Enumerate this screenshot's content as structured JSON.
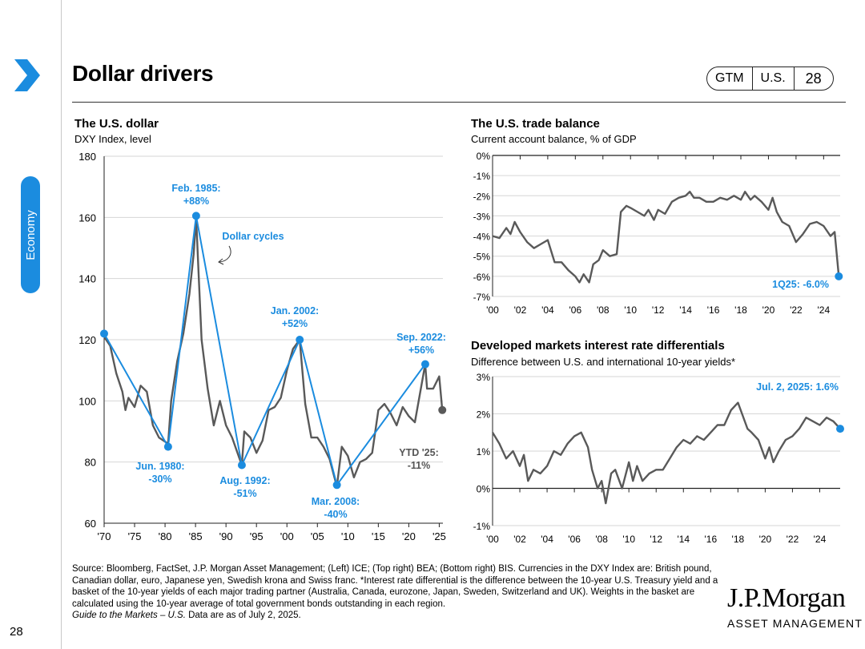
{
  "page": {
    "title": "Dollar drivers",
    "page_number": "28",
    "side_label": "Economy"
  },
  "header_tabs": [
    "GTM",
    "U.S.",
    "28"
  ],
  "colors": {
    "accent": "#1b8cdf",
    "line": "#595959",
    "grid": "#d6d6d6"
  },
  "source": {
    "text": "Source: Bloomberg, FactSet, J.P. Morgan Asset Management; (Left) ICE; (Top right) BEA; (Bottom right) BIS. Currencies in the DXY Index are: British pound, Canadian dollar, euro, Japanese yen, Swedish krona and Swiss franc. *Interest rate differential is the difference between the 10-year U.S. Treasury yield and a basket of the 10-year yields of each major trading partner (Australia, Canada, eurozone, Japan, Sweden, Switzerland and UK). Weights in the basket are calculated using the 10-year average of total government bonds outstanding in each region.",
    "guide": "Guide to the Markets – U.S.",
    "asof": " Data are as of July 2, 2025."
  },
  "logo": {
    "line1": "J.P.Morgan",
    "line2": "ASSET MANAGEMENT"
  },
  "chart_data": [
    {
      "id": "dxy",
      "type": "line",
      "title": "The U.S. dollar",
      "subtitle": "DXY Index, level",
      "xlim": [
        1970,
        2025.6
      ],
      "ylim": [
        60,
        180
      ],
      "yticks": [
        60,
        80,
        100,
        120,
        140,
        160,
        180
      ],
      "xticks": [
        1970,
        1975,
        1980,
        1985,
        1990,
        1995,
        2000,
        2005,
        2010,
        2015,
        2020,
        2025
      ],
      "xtick_labels": [
        "'70",
        "'75",
        "'80",
        "'85",
        "'90",
        "'95",
        "'00",
        "'05",
        "'10",
        "'15",
        "'20",
        "'25"
      ],
      "series": [
        {
          "name": "DXY Index",
          "points": [
            [
              1970,
              121
            ],
            [
              1971,
              118
            ],
            [
              1972,
              109
            ],
            [
              1973,
              103
            ],
            [
              1973.5,
              97
            ],
            [
              1974,
              101
            ],
            [
              1975,
              98
            ],
            [
              1976,
              105
            ],
            [
              1977,
              103
            ],
            [
              1978,
              92
            ],
            [
              1979,
              88
            ],
            [
              1980.5,
              86
            ],
            [
              1981,
              100
            ],
            [
              1982,
              113
            ],
            [
              1983,
              122
            ],
            [
              1984,
              135
            ],
            [
              1984.7,
              148
            ],
            [
              1985.1,
              160
            ],
            [
              1985.5,
              142
            ],
            [
              1986,
              120
            ],
            [
              1987,
              104
            ],
            [
              1988,
              92
            ],
            [
              1989,
              100
            ],
            [
              1990,
              92
            ],
            [
              1991,
              88
            ],
            [
              1992.6,
              79
            ],
            [
              1993,
              90
            ],
            [
              1994,
              88
            ],
            [
              1995,
              83
            ],
            [
              1996,
              87
            ],
            [
              1997,
              97
            ],
            [
              1998,
              98
            ],
            [
              1999,
              101
            ],
            [
              2000,
              110
            ],
            [
              2001,
              117
            ],
            [
              2002.1,
              120
            ],
            [
              2003,
              99
            ],
            [
              2004,
              88
            ],
            [
              2005,
              88
            ],
            [
              2006,
              85
            ],
            [
              2007,
              81
            ],
            [
              2008.2,
              72
            ],
            [
              2009,
              85
            ],
            [
              2010,
              82
            ],
            [
              2011,
              75
            ],
            [
              2012,
              80
            ],
            [
              2013,
              81
            ],
            [
              2014,
              83
            ],
            [
              2015,
              97
            ],
            [
              2016,
              99
            ],
            [
              2017,
              96
            ],
            [
              2018,
              92
            ],
            [
              2019,
              98
            ],
            [
              2020,
              95
            ],
            [
              2021,
              93
            ],
            [
              2022.7,
              112
            ],
            [
              2023,
              104
            ],
            [
              2024,
              104
            ],
            [
              2025,
              108
            ],
            [
              2025.5,
              97
            ]
          ]
        },
        {
          "name": "Dollar cycles",
          "points": [
            [
              1970,
              122
            ],
            [
              1980.5,
              85
            ],
            [
              1985.1,
              160.5
            ],
            [
              1992.6,
              79
            ],
            [
              2002.1,
              120
            ],
            [
              2008.2,
              72.5
            ],
            [
              2022.7,
              112
            ]
          ]
        }
      ],
      "end_value": 97,
      "annotations": [
        {
          "label": "Feb. 1985:",
          "value": "+88%"
        },
        {
          "label": "Jun. 1980:",
          "value": "-30%"
        },
        {
          "label": "Aug. 1992:",
          "value": "-51%"
        },
        {
          "label": "Jan. 2002:",
          "value": "+52%"
        },
        {
          "label": "Mar. 2008:",
          "value": "-40%"
        },
        {
          "label": "Sep. 2022:",
          "value": "+56%"
        },
        {
          "label": "YTD '25:",
          "value": "-11%"
        },
        {
          "label": "Dollar cycles"
        }
      ]
    },
    {
      "id": "trade",
      "type": "line",
      "title": "The U.S. trade balance",
      "subtitle": "Current account balance, % of GDP",
      "xlim": [
        2000,
        2025.2
      ],
      "ylim": [
        -7,
        0
      ],
      "yticks": [
        0,
        -1,
        -2,
        -3,
        -4,
        -5,
        -6,
        -7
      ],
      "ytick_labels": [
        "0%",
        "-1%",
        "-2%",
        "-3%",
        "-4%",
        "-5%",
        "-6%",
        "-7%"
      ],
      "xticks": [
        2000,
        2002,
        2004,
        2006,
        2008,
        2010,
        2012,
        2014,
        2016,
        2018,
        2020,
        2022,
        2024
      ],
      "xtick_labels": [
        "'00",
        "'02",
        "'04",
        "'06",
        "'08",
        "'10",
        "'12",
        "'14",
        "'16",
        "'18",
        "'20",
        "'22",
        "'24"
      ],
      "series": [
        {
          "name": "Current account balance",
          "points": [
            [
              2000,
              -4.0
            ],
            [
              2000.5,
              -4.1
            ],
            [
              2001,
              -3.6
            ],
            [
              2001.3,
              -3.9
            ],
            [
              2001.6,
              -3.3
            ],
            [
              2002,
              -3.8
            ],
            [
              2002.5,
              -4.3
            ],
            [
              2003,
              -4.6
            ],
            [
              2003.5,
              -4.4
            ],
            [
              2004,
              -4.2
            ],
            [
              2004.5,
              -5.3
            ],
            [
              2005,
              -5.3
            ],
            [
              2005.5,
              -5.7
            ],
            [
              2006,
              -6.0
            ],
            [
              2006.3,
              -6.3
            ],
            [
              2006.6,
              -5.9
            ],
            [
              2007,
              -6.3
            ],
            [
              2007.3,
              -5.4
            ],
            [
              2007.7,
              -5.2
            ],
            [
              2008,
              -4.7
            ],
            [
              2008.5,
              -5.0
            ],
            [
              2009,
              -4.9
            ],
            [
              2009.3,
              -2.8
            ],
            [
              2009.7,
              -2.5
            ],
            [
              2010,
              -2.6
            ],
            [
              2010.5,
              -2.8
            ],
            [
              2011,
              -3.0
            ],
            [
              2011.3,
              -2.7
            ],
            [
              2011.7,
              -3.2
            ],
            [
              2012,
              -2.7
            ],
            [
              2012.5,
              -2.9
            ],
            [
              2013,
              -2.3
            ],
            [
              2013.5,
              -2.1
            ],
            [
              2014,
              -2.0
            ],
            [
              2014.3,
              -1.8
            ],
            [
              2014.6,
              -2.1
            ],
            [
              2015,
              -2.1
            ],
            [
              2015.5,
              -2.3
            ],
            [
              2016,
              -2.3
            ],
            [
              2016.5,
              -2.1
            ],
            [
              2017,
              -2.2
            ],
            [
              2017.5,
              -2.0
            ],
            [
              2018,
              -2.2
            ],
            [
              2018.3,
              -1.8
            ],
            [
              2018.7,
              -2.2
            ],
            [
              2019,
              -2.0
            ],
            [
              2019.5,
              -2.3
            ],
            [
              2020,
              -2.7
            ],
            [
              2020.3,
              -2.1
            ],
            [
              2020.6,
              -2.8
            ],
            [
              2021,
              -3.3
            ],
            [
              2021.5,
              -3.5
            ],
            [
              2022,
              -4.3
            ],
            [
              2022.5,
              -3.9
            ],
            [
              2023,
              -3.4
            ],
            [
              2023.5,
              -3.3
            ],
            [
              2024,
              -3.5
            ],
            [
              2024.5,
              -4.0
            ],
            [
              2024.8,
              -3.8
            ],
            [
              2025.1,
              -6.0
            ]
          ]
        }
      ],
      "end_value": -6.0,
      "annotations": [
        {
          "label": "1Q25: -6.0%"
        }
      ]
    },
    {
      "id": "rates",
      "type": "line",
      "title": "Developed markets interest rate differentials",
      "subtitle": "Difference between U.S. and international 10-year yields*",
      "xlim": [
        2000,
        2025.5
      ],
      "ylim": [
        -1,
        3
      ],
      "yticks": [
        3,
        2,
        1,
        0,
        -1
      ],
      "ytick_labels": [
        "3%",
        "2%",
        "1%",
        "0%",
        "-1%"
      ],
      "xticks": [
        2000,
        2002,
        2004,
        2006,
        2008,
        2010,
        2012,
        2014,
        2016,
        2018,
        2020,
        2022,
        2024
      ],
      "xtick_labels": [
        "'00",
        "'02",
        "'04",
        "'06",
        "'08",
        "'10",
        "'12",
        "'14",
        "'16",
        "'18",
        "'20",
        "'22",
        "'24"
      ],
      "series": [
        {
          "name": "Interest rate differential",
          "points": [
            [
              2000,
              1.5
            ],
            [
              2000.5,
              1.2
            ],
            [
              2001,
              0.8
            ],
            [
              2001.5,
              1.0
            ],
            [
              2002,
              0.6
            ],
            [
              2002.3,
              0.9
            ],
            [
              2002.6,
              0.2
            ],
            [
              2003,
              0.5
            ],
            [
              2003.5,
              0.4
            ],
            [
              2004,
              0.6
            ],
            [
              2004.5,
              1.0
            ],
            [
              2005,
              0.9
            ],
            [
              2005.5,
              1.2
            ],
            [
              2006,
              1.4
            ],
            [
              2006.5,
              1.5
            ],
            [
              2007,
              1.1
            ],
            [
              2007.3,
              0.5
            ],
            [
              2007.7,
              0.0
            ],
            [
              2008,
              0.2
            ],
            [
              2008.3,
              -0.4
            ],
            [
              2008.7,
              0.4
            ],
            [
              2009,
              0.5
            ],
            [
              2009.5,
              0.0
            ],
            [
              2010,
              0.7
            ],
            [
              2010.3,
              0.2
            ],
            [
              2010.6,
              0.6
            ],
            [
              2011,
              0.2
            ],
            [
              2011.5,
              0.4
            ],
            [
              2012,
              0.5
            ],
            [
              2012.5,
              0.5
            ],
            [
              2013,
              0.8
            ],
            [
              2013.5,
              1.1
            ],
            [
              2014,
              1.3
            ],
            [
              2014.5,
              1.2
            ],
            [
              2015,
              1.4
            ],
            [
              2015.5,
              1.3
            ],
            [
              2016,
              1.5
            ],
            [
              2016.5,
              1.7
            ],
            [
              2017,
              1.7
            ],
            [
              2017.5,
              2.1
            ],
            [
              2018,
              2.3
            ],
            [
              2018.3,
              2.0
            ],
            [
              2018.7,
              1.6
            ],
            [
              2019,
              1.5
            ],
            [
              2019.5,
              1.3
            ],
            [
              2020,
              0.8
            ],
            [
              2020.3,
              1.1
            ],
            [
              2020.6,
              0.7
            ],
            [
              2021,
              1.0
            ],
            [
              2021.5,
              1.3
            ],
            [
              2022,
              1.4
            ],
            [
              2022.5,
              1.6
            ],
            [
              2023,
              1.9
            ],
            [
              2023.5,
              1.8
            ],
            [
              2024,
              1.7
            ],
            [
              2024.5,
              1.9
            ],
            [
              2025,
              1.8
            ],
            [
              2025.5,
              1.6
            ]
          ]
        }
      ],
      "end_value": 1.6,
      "annotations": [
        {
          "label": "Jul. 2, 2025: 1.6%"
        }
      ]
    }
  ]
}
